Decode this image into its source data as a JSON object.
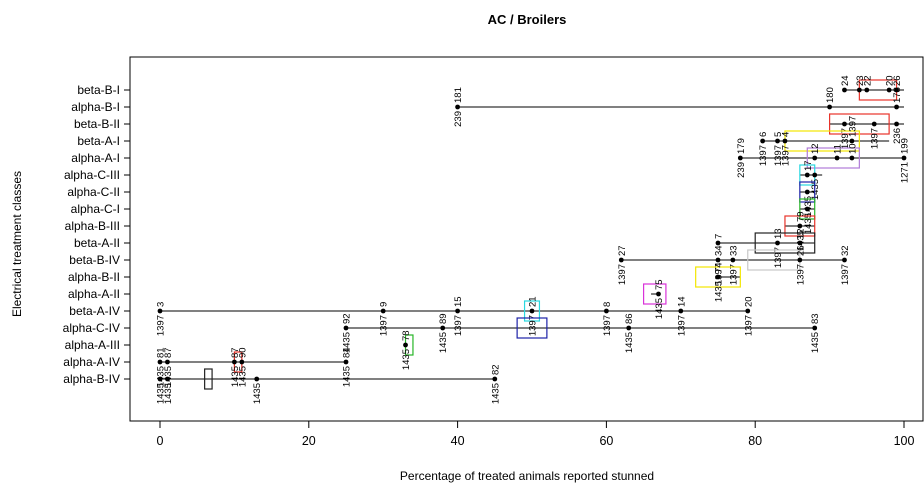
{
  "chart_data": {
    "type": "scatter",
    "title": "AC / Broilers",
    "xlabel": "Percentage of treated animals reported stunned",
    "ylabel": "Electrical treatment classes",
    "xlim": [
      0,
      100
    ],
    "xticks": [
      "0",
      "20",
      "40",
      "60",
      "80",
      "100"
    ],
    "grid": false,
    "categories": [
      "beta-B-I",
      "alpha-B-I",
      "beta-B-II",
      "beta-A-I",
      "alpha-A-I",
      "alpha-C-III",
      "alpha-C-II",
      "alpha-C-I",
      "alpha-B-III",
      "beta-A-II",
      "beta-B-IV",
      "alpha-B-II",
      "alpha-A-II",
      "beta-A-IV",
      "alpha-C-IV",
      "alpha-A-III",
      "alpha-A-IV",
      "alpha-B-IV"
    ],
    "rows": [
      {
        "category": "beta-B-I",
        "range": [
          92,
          100
        ],
        "box": {
          "lo": 94,
          "hi": 99,
          "color": "#e8332a"
        },
        "points": [
          {
            "x": 92,
            "up": "24"
          },
          {
            "x": 94,
            "up": "23"
          },
          {
            "x": 95,
            "up": "22"
          },
          {
            "x": 98,
            "up": "20"
          },
          {
            "x": 99,
            "up": "26"
          }
        ]
      },
      {
        "category": "alpha-B-I",
        "range": [
          40,
          100
        ],
        "box": null,
        "points": [
          {
            "x": 40,
            "up": "181",
            "down": "239"
          },
          {
            "x": 90,
            "up": "180"
          },
          {
            "x": 99,
            "up": "178"
          }
        ]
      },
      {
        "category": "beta-B-II",
        "range": [
          90,
          100
        ],
        "box": {
          "lo": 90,
          "hi": 98,
          "color": "#e8332a"
        },
        "points": [
          {
            "x": 92,
            "down": "1397"
          },
          {
            "x": 96,
            "down": "1397"
          },
          {
            "x": 99,
            "down": "236"
          }
        ]
      },
      {
        "category": "beta-A-I",
        "range": [
          81,
          98
        ],
        "box": {
          "lo": 84,
          "hi": 94,
          "color": "#f2e600"
        },
        "points": [
          {
            "x": 81,
            "up": "6",
            "down": "1397"
          },
          {
            "x": 83,
            "up": "5",
            "down": "1397"
          },
          {
            "x": 84,
            "up": "4",
            "down": "1397"
          },
          {
            "x": 93,
            "up": "1397"
          }
        ]
      },
      {
        "category": "alpha-A-I",
        "range": [
          78,
          100
        ],
        "box": {
          "lo": 87,
          "hi": 94,
          "color": "#b07cd8"
        },
        "points": [
          {
            "x": 78,
            "up": "179",
            "down": "239"
          },
          {
            "x": 88,
            "up": "12"
          },
          {
            "x": 91,
            "up": "11"
          },
          {
            "x": 93,
            "up": "10"
          },
          {
            "x": 100,
            "up": "199",
            "down": "1271"
          }
        ]
      },
      {
        "category": "alpha-C-III",
        "range": [
          86,
          89
        ],
        "box": {
          "lo": 86,
          "hi": 88,
          "color": "#29d8e0"
        },
        "points": [
          {
            "x": 87,
            "up": "17"
          },
          {
            "x": 88,
            "down": "1435"
          }
        ]
      },
      {
        "category": "alpha-C-II",
        "range": [
          86,
          88
        ],
        "box": {
          "lo": 86,
          "hi": 88,
          "color": "#1d22a8"
        },
        "points": [
          {
            "x": 87,
            "down": "1435"
          }
        ]
      },
      {
        "category": "alpha-C-I",
        "range": [
          86,
          88
        ],
        "box": {
          "lo": 86,
          "hi": 88,
          "color": "#27b527"
        },
        "points": [
          {
            "x": 87,
            "down": "1435"
          }
        ]
      },
      {
        "category": "alpha-B-III",
        "range": [
          84,
          88
        ],
        "box": {
          "lo": 84,
          "hi": 88,
          "color": "#e8332a"
        },
        "points": [
          {
            "x": 86,
            "up": "79",
            "down": "1435"
          }
        ]
      },
      {
        "category": "beta-A-II",
        "range": [
          75,
          88
        ],
        "box": {
          "lo": 80,
          "hi": 88,
          "color": "#222222"
        },
        "points": [
          {
            "x": 75,
            "up": "7"
          },
          {
            "x": 83,
            "up": "13",
            "down": "1397"
          },
          {
            "x": 86,
            "up": "12"
          }
        ]
      },
      {
        "category": "beta-B-IV",
        "range": [
          62,
          92
        ],
        "box": {
          "lo": 79,
          "hi": 86,
          "color": "#c8c8c8"
        },
        "points": [
          {
            "x": 62,
            "up": "27",
            "down": "1397"
          },
          {
            "x": 75,
            "up": "34",
            "down": "1397"
          },
          {
            "x": 77,
            "up": "33",
            "down": "1397"
          },
          {
            "x": 86,
            "up": "26",
            "down": "1397"
          },
          {
            "x": 92,
            "up": "32",
            "down": "1397"
          }
        ]
      },
      {
        "category": "alpha-B-II",
        "range": [
          75,
          78
        ],
        "box": {
          "lo": 72,
          "hi": 78,
          "color": "#f2e600"
        },
        "points": [
          {
            "x": 75,
            "up": "74",
            "down": "1435"
          }
        ]
      },
      {
        "category": "alpha-A-II",
        "range": [
          66,
          67
        ],
        "box": {
          "lo": 65,
          "hi": 68,
          "color": "#d933d9"
        },
        "points": [
          {
            "x": 67,
            "up": "75",
            "down": "1435"
          }
        ]
      },
      {
        "category": "beta-A-IV",
        "range": [
          0,
          79
        ],
        "box": {
          "lo": 49,
          "hi": 51,
          "color": "#29d8e0"
        },
        "points": [
          {
            "x": 0,
            "up": "3",
            "down": "1397"
          },
          {
            "x": 30,
            "up": "9",
            "down": "1397"
          },
          {
            "x": 40,
            "up": "15",
            "down": "1397"
          },
          {
            "x": 50,
            "up": "21",
            "down": "1397"
          },
          {
            "x": 60,
            "up": "8",
            "down": "1397"
          },
          {
            "x": 70,
            "up": "14",
            "down": "1397"
          },
          {
            "x": 79,
            "up": "20",
            "down": "1397"
          }
        ]
      },
      {
        "category": "alpha-C-IV",
        "range": [
          25,
          88
        ],
        "box": {
          "lo": 48,
          "hi": 52,
          "color": "#1d22a8"
        },
        "points": [
          {
            "x": 25,
            "up": "92",
            "down": "1435"
          },
          {
            "x": 38,
            "up": "89",
            "down": "1435"
          },
          {
            "x": 63,
            "up": "86",
            "down": "1435"
          },
          {
            "x": 88,
            "up": "83",
            "down": "1435"
          }
        ]
      },
      {
        "category": "alpha-A-III",
        "range": [
          33,
          33
        ],
        "box": {
          "lo": 33,
          "hi": 34,
          "color": "#27b527"
        },
        "points": [
          {
            "x": 33,
            "up": "78",
            "down": "1435"
          }
        ]
      },
      {
        "category": "alpha-A-IV",
        "range": [
          0,
          25
        ],
        "box": {
          "lo": 10,
          "hi": 11,
          "color": "#e8332a"
        },
        "points": [
          {
            "x": 0,
            "up": "81",
            "down": "1435"
          },
          {
            "x": 1,
            "up": "87",
            "down": "1435"
          },
          {
            "x": 10,
            "up": "87",
            "down": "1435"
          },
          {
            "x": 11,
            "up": "90",
            "down": "1435"
          },
          {
            "x": 25,
            "up": "84",
            "down": "1435"
          }
        ]
      },
      {
        "category": "alpha-B-IV",
        "range": [
          0,
          45
        ],
        "box": {
          "lo": 6,
          "hi": 7,
          "color": "#222222"
        },
        "points": [
          {
            "x": 0,
            "down": "1435"
          },
          {
            "x": 1,
            "down": "1435"
          },
          {
            "x": 13,
            "down": "1435"
          },
          {
            "x": 45,
            "up": "82",
            "down": "1435"
          }
        ]
      }
    ]
  }
}
